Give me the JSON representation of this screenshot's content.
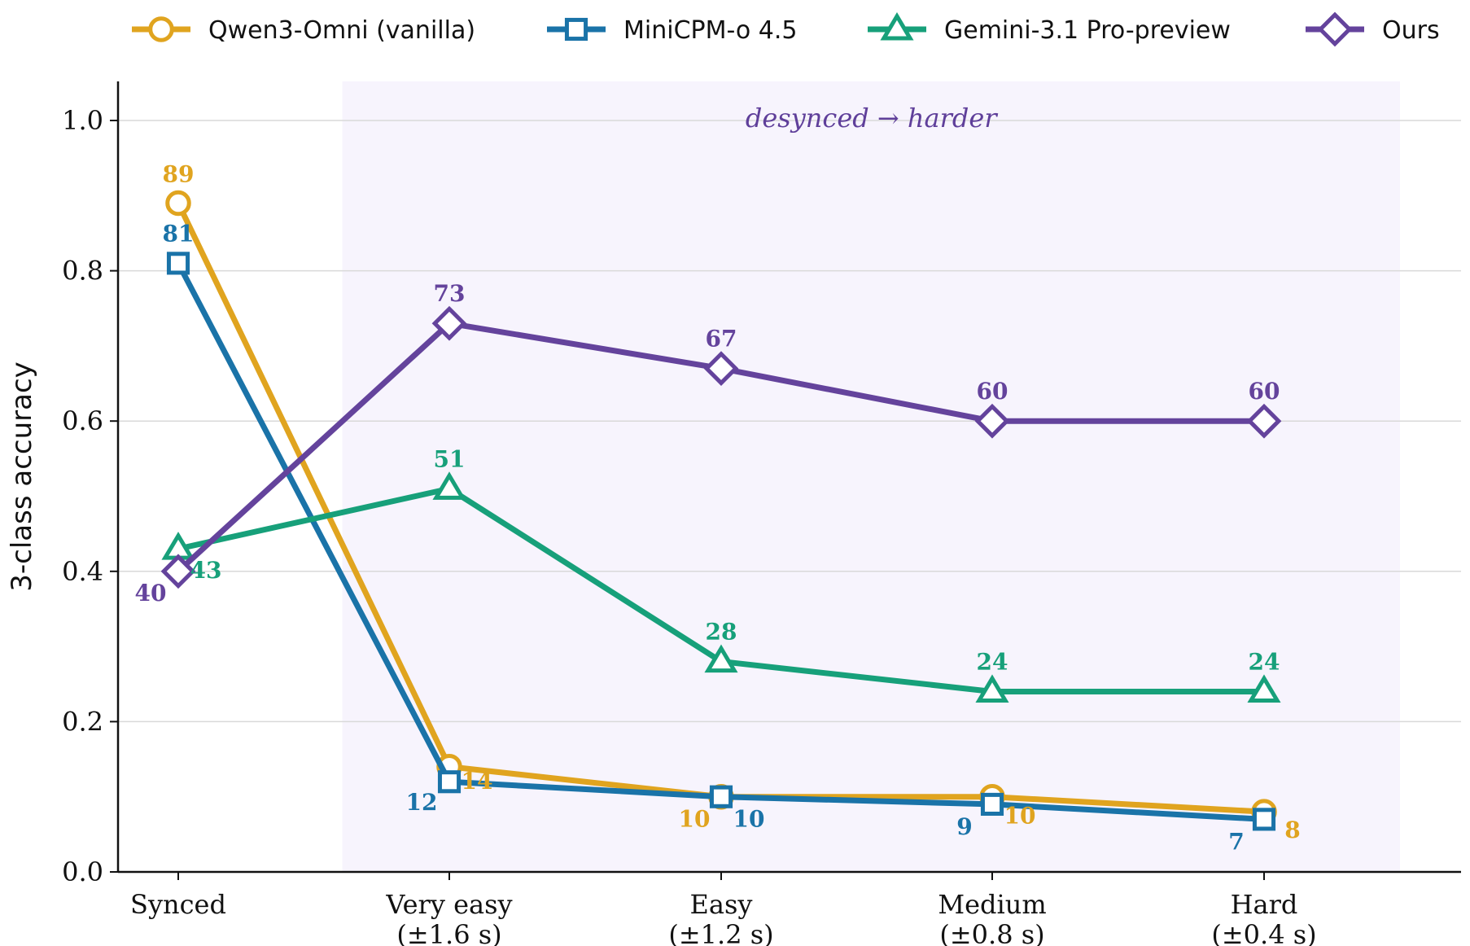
{
  "chart_data": {
    "type": "line",
    "categories": [
      "Synced",
      "Very easy (±1.6 s)",
      "Easy (±1.2 s)",
      "Medium (±0.8 s)",
      "Hard (±0.4 s)"
    ],
    "tick_lines": [
      [
        "Synced"
      ],
      [
        "Very easy",
        "(±1.6 s)"
      ],
      [
        "Easy",
        "(±1.2 s)"
      ],
      [
        "Medium",
        "(±0.8 s)"
      ],
      [
        "Hard",
        "(±0.4 s)"
      ]
    ],
    "ylabel": "3-class accuracy",
    "ylim": [
      0,
      1.05
    ],
    "yticks": [
      "0.0",
      "0.2",
      "0.4",
      "0.6",
      "0.8",
      "1.0"
    ],
    "grid": "horizontal",
    "legend_position": "top",
    "shaded_region": {
      "from_category": 1,
      "to_category": 4
    },
    "annotation": "desynced → harder",
    "series": [
      {
        "name": "Qwen3-Omni (vanilla)",
        "marker": "circle",
        "color": "#e0a41f",
        "values": [
          0.89,
          0.14,
          0.1,
          0.1,
          0.08
        ],
        "labels": [
          "89",
          "14",
          "10",
          "10",
          "8"
        ]
      },
      {
        "name": "MiniCPM-o 4.5",
        "marker": "square",
        "color": "#1a73a8",
        "values": [
          0.81,
          0.12,
          0.1,
          0.09,
          0.07
        ],
        "labels": [
          "81",
          "12",
          "10",
          "9",
          "7"
        ]
      },
      {
        "name": "Gemini-3.1 Pro-preview",
        "marker": "triangle",
        "color": "#17a07a",
        "values": [
          0.43,
          0.51,
          0.28,
          0.24,
          0.24
        ],
        "labels": [
          "43",
          "51",
          "28",
          "24",
          "24"
        ]
      },
      {
        "name": "Ours",
        "marker": "diamond",
        "color": "#64439c",
        "values": [
          0.4,
          0.73,
          0.67,
          0.6,
          0.6
        ],
        "labels": [
          "40",
          "73",
          "67",
          "60",
          "60"
        ]
      }
    ]
  }
}
